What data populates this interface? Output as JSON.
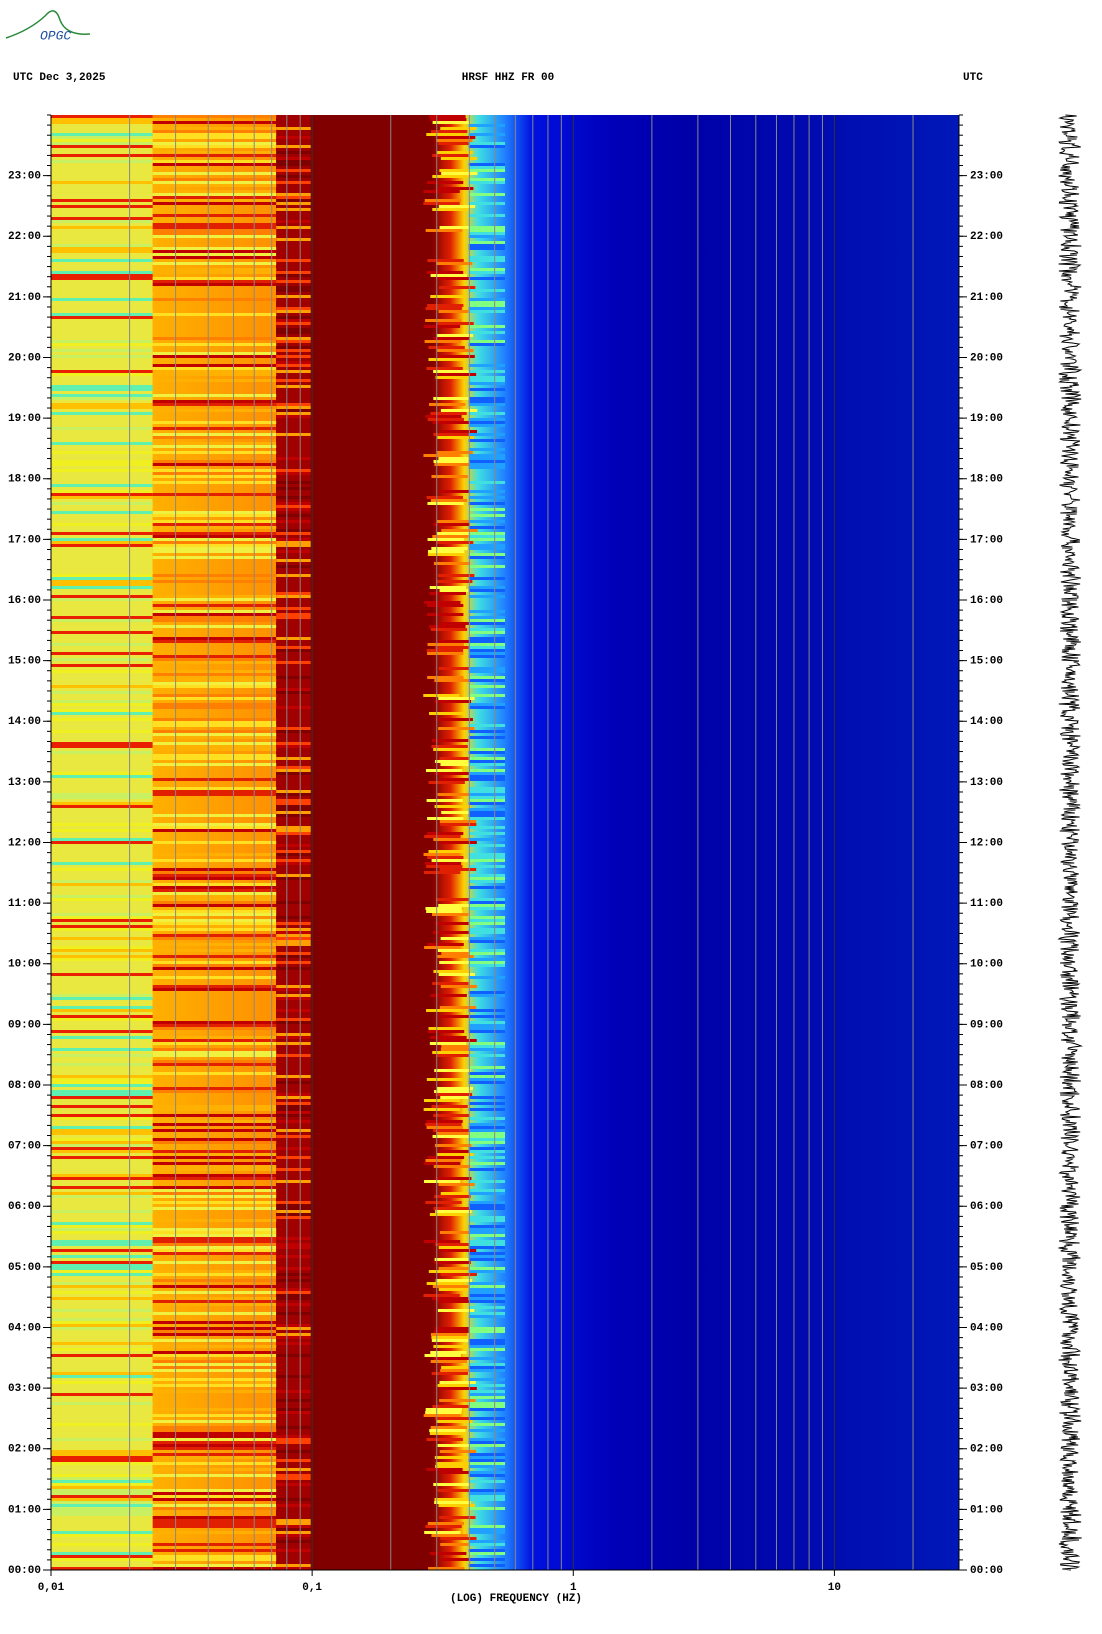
{
  "logo": "OPGC",
  "chart_data": {
    "type": "spectrogram",
    "header_left": "UTC  Dec 3,2025",
    "title": "HRSF HHZ FR 00",
    "header_right": "UTC",
    "xlabel": "(LOG) FREQUENCY (HZ)",
    "xscale": "log",
    "xlim": [
      0.01,
      30
    ],
    "xticks": [
      {
        "value": 0.01,
        "label": "0,01"
      },
      {
        "value": 0.1,
        "label": "0,1"
      },
      1,
      10
    ],
    "ylim": [
      0,
      24
    ],
    "yticks": [
      {
        "value": 0,
        "label": "00:00"
      },
      {
        "value": 1,
        "label": "01:00"
      },
      {
        "value": 2,
        "label": "02:00"
      },
      {
        "value": 3,
        "label": "03:00"
      },
      {
        "value": 4,
        "label": "04:00"
      },
      {
        "value": 5,
        "label": "05:00"
      },
      {
        "value": 6,
        "label": "06:00"
      },
      {
        "value": 7,
        "label": "07:00"
      },
      {
        "value": 8,
        "label": "08:00"
      },
      {
        "value": 9,
        "label": "09:00"
      },
      {
        "value": 10,
        "label": "10:00"
      },
      {
        "value": 11,
        "label": "11:00"
      },
      {
        "value": 12,
        "label": "12:00"
      },
      {
        "value": 13,
        "label": "13:00"
      },
      {
        "value": 14,
        "label": "14:00"
      },
      {
        "value": 15,
        "label": "15:00"
      },
      {
        "value": 16,
        "label": "16:00"
      },
      {
        "value": 17,
        "label": "17:00"
      },
      {
        "value": 18,
        "label": "18:00"
      },
      {
        "value": 19,
        "label": "19:00"
      },
      {
        "value": 20,
        "label": "20:00"
      },
      {
        "value": 21,
        "label": "21:00"
      },
      {
        "value": 22,
        "label": "22:00"
      },
      {
        "value": 23,
        "label": "23:00"
      }
    ],
    "grid": true
  }
}
